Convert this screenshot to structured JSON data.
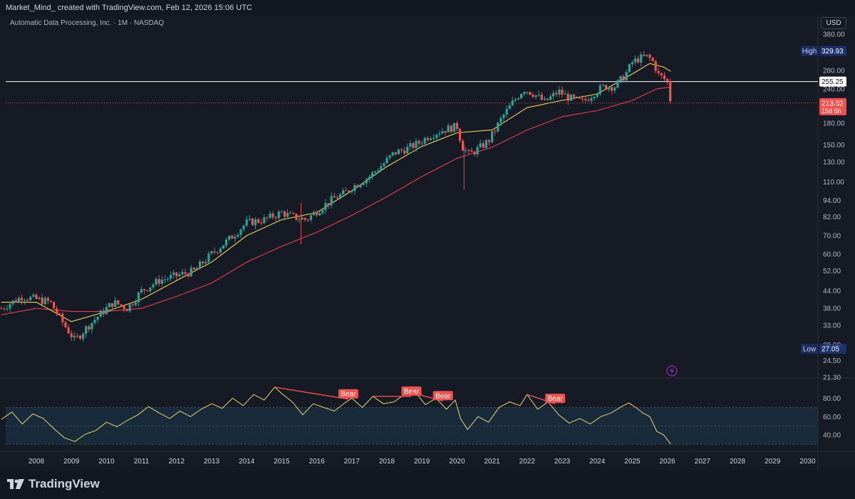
{
  "header": {
    "attribution": "Market_Mind_ created with TradingView.com, Feb 12, 2026 15:06 UTC"
  },
  "symbol_line": "Automatic Data Processing, Inc. · 1M · NASDAQ",
  "currency": "USD",
  "brand": "TradingView",
  "colors": {
    "bull": "#26a69a",
    "bear": "#ef5350",
    "ma_fast": "#f0d354",
    "ma_slow": "#e5404f",
    "rsi": "#e4d66b",
    "rsi_band": "#1d3a4d",
    "hline": "#ffffff"
  },
  "chart_data": [
    {
      "type": "candlestick",
      "title": "Automatic Data Processing, Inc. · 1M · NASDAQ",
      "x_axis": {
        "ticks": [
          "2008",
          "2009",
          "2010",
          "2011",
          "2012",
          "2013",
          "2014",
          "2015",
          "2016",
          "2017",
          "2018",
          "2019",
          "2020",
          "2021",
          "2022",
          "2023",
          "2024",
          "2025",
          "2026",
          "2027",
          "2028",
          "2029",
          "2030"
        ]
      },
      "y_axis": {
        "scale": "log",
        "range": [
          21.3,
          380
        ],
        "ticks": [
          "380.00",
          "280.00",
          "240.00",
          "180.00",
          "150.00",
          "130.00",
          "110.00",
          "94.00",
          "82.00",
          "70.00",
          "60.00",
          "52.00",
          "44.00",
          "38.00",
          "33.00",
          "28.00",
          "24.50",
          "21.30"
        ]
      },
      "price_labels": [
        {
          "label": "High",
          "value": "329.93"
        },
        {
          "label": "",
          "value": "255.25"
        },
        {
          "label": "",
          "value": "213.02",
          "sub": "15d 6h"
        },
        {
          "label": "Low",
          "value": "27.05"
        }
      ],
      "close_path": [
        [
          2007.0,
          38
        ],
        [
          2007.6,
          42
        ],
        [
          2008.0,
          41
        ],
        [
          2008.4,
          40
        ],
        [
          2008.8,
          33
        ],
        [
          2009.1,
          29
        ],
        [
          2009.4,
          32
        ],
        [
          2009.8,
          36
        ],
        [
          2010.2,
          40
        ],
        [
          2010.6,
          38
        ],
        [
          2011.0,
          44
        ],
        [
          2011.5,
          48
        ],
        [
          2012.0,
          50
        ],
        [
          2012.5,
          52
        ],
        [
          2013.0,
          60
        ],
        [
          2013.5,
          68
        ],
        [
          2014.0,
          78
        ],
        [
          2014.5,
          80
        ],
        [
          2015.0,
          85
        ],
        [
          2015.3,
          82
        ],
        [
          2015.7,
          80
        ],
        [
          2016.0,
          86
        ],
        [
          2016.5,
          96
        ],
        [
          2016.8,
          100
        ],
        [
          2017.0,
          105
        ],
        [
          2017.5,
          115
        ],
        [
          2017.9,
          128
        ],
        [
          2018.2,
          140
        ],
        [
          2018.6,
          146
        ],
        [
          2018.9,
          152
        ],
        [
          2019.2,
          162
        ],
        [
          2019.6,
          170
        ],
        [
          2020.0,
          175
        ],
        [
          2020.15,
          148
        ],
        [
          2020.35,
          138
        ],
        [
          2020.6,
          145
        ],
        [
          2020.9,
          155
        ],
        [
          2021.3,
          190
        ],
        [
          2021.6,
          215
        ],
        [
          2021.9,
          240
        ],
        [
          2022.2,
          230
        ],
        [
          2022.5,
          215
        ],
        [
          2022.9,
          235
        ],
        [
          2023.2,
          222
        ],
        [
          2023.6,
          215
        ],
        [
          2023.9,
          232
        ],
        [
          2024.2,
          245
        ],
        [
          2024.5,
          245
        ],
        [
          2024.8,
          270
        ],
        [
          2025.0,
          300
        ],
        [
          2025.2,
          310
        ],
        [
          2025.45,
          315
        ],
        [
          2025.6,
          300
        ],
        [
          2025.75,
          270
        ],
        [
          2025.9,
          262
        ],
        [
          2026.0,
          255
        ],
        [
          2026.1,
          213
        ]
      ],
      "ma_fast": [
        [
          2007.0,
          40
        ],
        [
          2008.0,
          40
        ],
        [
          2009.0,
          34
        ],
        [
          2010.0,
          37
        ],
        [
          2011.0,
          41
        ],
        [
          2012.0,
          48
        ],
        [
          2013.0,
          56
        ],
        [
          2014.0,
          70
        ],
        [
          2015.0,
          80
        ],
        [
          2016.0,
          85
        ],
        [
          2017.0,
          102
        ],
        [
          2018.0,
          125
        ],
        [
          2019.0,
          148
        ],
        [
          2020.0,
          166
        ],
        [
          2021.0,
          170
        ],
        [
          2022.0,
          205
        ],
        [
          2023.0,
          218
        ],
        [
          2024.0,
          230
        ],
        [
          2025.0,
          272
        ],
        [
          2025.5,
          297
        ],
        [
          2025.9,
          288
        ],
        [
          2026.1,
          278
        ]
      ],
      "ma_slow": [
        [
          2007.0,
          36
        ],
        [
          2008.0,
          38
        ],
        [
          2009.0,
          37
        ],
        [
          2010.0,
          37
        ],
        [
          2011.0,
          38
        ],
        [
          2012.0,
          42
        ],
        [
          2013.0,
          47
        ],
        [
          2014.0,
          56
        ],
        [
          2015.0,
          64
        ],
        [
          2016.0,
          72
        ],
        [
          2017.0,
          83
        ],
        [
          2018.0,
          97
        ],
        [
          2019.0,
          115
        ],
        [
          2020.0,
          134
        ],
        [
          2021.0,
          147
        ],
        [
          2022.0,
          170
        ],
        [
          2023.0,
          190
        ],
        [
          2024.0,
          200
        ],
        [
          2025.0,
          218
        ],
        [
          2025.7,
          240
        ],
        [
          2026.1,
          244
        ]
      ],
      "horizontal_line": 255.25,
      "last_price_line": 213.02
    },
    {
      "type": "line",
      "title": "",
      "y_axis": {
        "range": [
          27,
          95
        ],
        "ticks": [
          "80.00",
          "60.00",
          "40.00"
        ],
        "band": [
          30,
          70
        ]
      },
      "series": [
        {
          "values": [
            [
              2007.0,
              57
            ],
            [
              2007.3,
              65
            ],
            [
              2007.6,
              52
            ],
            [
              2007.9,
              63
            ],
            [
              2008.2,
              58
            ],
            [
              2008.5,
              47
            ],
            [
              2008.8,
              37
            ],
            [
              2009.1,
              33
            ],
            [
              2009.4,
              41
            ],
            [
              2009.7,
              45
            ],
            [
              2010.0,
              54
            ],
            [
              2010.3,
              49
            ],
            [
              2010.6,
              56
            ],
            [
              2010.9,
              62
            ],
            [
              2011.2,
              71
            ],
            [
              2011.5,
              64
            ],
            [
              2011.8,
              58
            ],
            [
              2012.1,
              66
            ],
            [
              2012.4,
              60
            ],
            [
              2012.7,
              68
            ],
            [
              2013.0,
              74
            ],
            [
              2013.3,
              69
            ],
            [
              2013.6,
              80
            ],
            [
              2013.9,
              72
            ],
            [
              2014.2,
              84
            ],
            [
              2014.5,
              78
            ],
            [
              2014.8,
              92
            ],
            [
              2015.0,
              85
            ],
            [
              2015.3,
              76
            ],
            [
              2015.6,
              62
            ],
            [
              2015.9,
              74
            ],
            [
              2016.2,
              70
            ],
            [
              2016.5,
              66
            ],
            [
              2016.8,
              75
            ],
            [
              2017.0,
              80
            ],
            [
              2017.3,
              70
            ],
            [
              2017.6,
              82
            ],
            [
              2017.9,
              74
            ],
            [
              2018.2,
              76
            ],
            [
              2018.5,
              84
            ],
            [
              2018.8,
              87
            ],
            [
              2019.1,
              73
            ],
            [
              2019.4,
              80
            ],
            [
              2019.7,
              68
            ],
            [
              2019.95,
              78
            ],
            [
              2020.1,
              58
            ],
            [
              2020.3,
              46
            ],
            [
              2020.6,
              60
            ],
            [
              2020.9,
              54
            ],
            [
              2021.2,
              70
            ],
            [
              2021.5,
              76
            ],
            [
              2021.8,
              72
            ],
            [
              2022.0,
              84
            ],
            [
              2022.3,
              68
            ],
            [
              2022.6,
              76
            ],
            [
              2022.9,
              62
            ],
            [
              2023.2,
              53
            ],
            [
              2023.5,
              58
            ],
            [
              2023.8,
              52
            ],
            [
              2024.1,
              60
            ],
            [
              2024.4,
              64
            ],
            [
              2024.7,
              71
            ],
            [
              2024.9,
              75
            ],
            [
              2025.1,
              70
            ],
            [
              2025.3,
              64
            ],
            [
              2025.5,
              60
            ],
            [
              2025.7,
              44
            ],
            [
              2025.9,
              40
            ],
            [
              2026.1,
              30
            ]
          ]
        }
      ],
      "annotations": [
        {
          "label": "Bear",
          "from": [
            2014.8,
            92
          ],
          "to": [
            2016.9,
            79
          ]
        },
        {
          "label": "Bear",
          "from": [
            2017.6,
            82
          ],
          "to": [
            2018.7,
            82
          ]
        },
        {
          "label": "Bear",
          "from": [
            2018.7,
            86
          ],
          "to": [
            2019.6,
            77
          ]
        },
        {
          "label": "Bear",
          "from": [
            2022.0,
            84
          ],
          "to": [
            2022.8,
            74
          ]
        }
      ]
    }
  ]
}
